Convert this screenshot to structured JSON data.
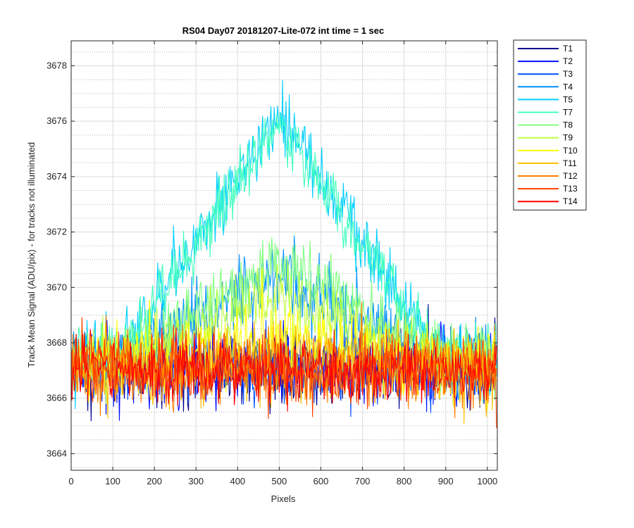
{
  "chart_data": {
    "type": "line",
    "title": "RS04 Day07 20181207-Lite-072 int time = 1 sec",
    "xlabel": "Pixels",
    "ylabel": "Track Mean Signal (ADU/pix) - for tracks not illuminated",
    "xlim": [
      0,
      1024
    ],
    "ylim": [
      3663.4,
      3678.9
    ],
    "xticks": [
      0,
      100,
      200,
      300,
      400,
      500,
      600,
      700,
      800,
      900,
      1000
    ],
    "xtick_labels": [
      "0",
      "100",
      "200",
      "300",
      "400",
      "500",
      "600",
      "700",
      "800",
      "900",
      "1000"
    ],
    "yticks": [
      3664,
      3666,
      3668,
      3670,
      3672,
      3674,
      3676,
      3678
    ],
    "ytick_labels": [
      "3664",
      "3666",
      "3668",
      "3670",
      "3672",
      "3674",
      "3676",
      "3678"
    ],
    "grid": true,
    "minor_grid_y": true,
    "legend_position": "outside-top-right",
    "series": [
      {
        "name": "T1",
        "color": "#00008f",
        "base": 3667.0,
        "peak": 0.0,
        "noise": 0.85,
        "seed": 11
      },
      {
        "name": "T2",
        "color": "#0010ff",
        "base": 3667.1,
        "peak": 0.0,
        "noise": 0.85,
        "seed": 23
      },
      {
        "name": "T3",
        "color": "#0050ff",
        "base": 3667.2,
        "peak": 0.0,
        "noise": 0.8,
        "seed": 37
      },
      {
        "name": "T4",
        "color": "#0090ff",
        "base": 3667.4,
        "peak": 3.0,
        "noise": 0.8,
        "seed": 41
      },
      {
        "name": "T5",
        "color": "#00cfff",
        "base": 3667.6,
        "peak": 8.6,
        "noise": 0.75,
        "seed": 53
      },
      {
        "name": "T7",
        "color": "#40ffbf",
        "base": 3667.6,
        "peak": 8.4,
        "noise": 0.75,
        "seed": 67
      },
      {
        "name": "T8",
        "color": "#80ff80",
        "base": 3667.5,
        "peak": 3.5,
        "noise": 0.75,
        "seed": 71
      },
      {
        "name": "T9",
        "color": "#bfff40",
        "base": 3667.4,
        "peak": 2.3,
        "noise": 0.75,
        "seed": 83
      },
      {
        "name": "T10",
        "color": "#ffff00",
        "base": 3667.3,
        "peak": 1.0,
        "noise": 0.8,
        "seed": 97
      },
      {
        "name": "T11",
        "color": "#ffbf00",
        "base": 3667.1,
        "peak": 0.2,
        "noise": 0.85,
        "seed": 101
      },
      {
        "name": "T12",
        "color": "#ff8000",
        "base": 3667.0,
        "peak": 0.0,
        "noise": 0.85,
        "seed": 113
      },
      {
        "name": "T13",
        "color": "#ff4000",
        "base": 3667.0,
        "peak": 0.0,
        "noise": 0.8,
        "seed": 127
      },
      {
        "name": "T14",
        "color": "#ff0000",
        "base": 3667.0,
        "peak": 0.0,
        "noise": 0.7,
        "seed": 131
      }
    ],
    "peak_center": 500,
    "peak_halfwidth": 380,
    "samples": 1024
  }
}
